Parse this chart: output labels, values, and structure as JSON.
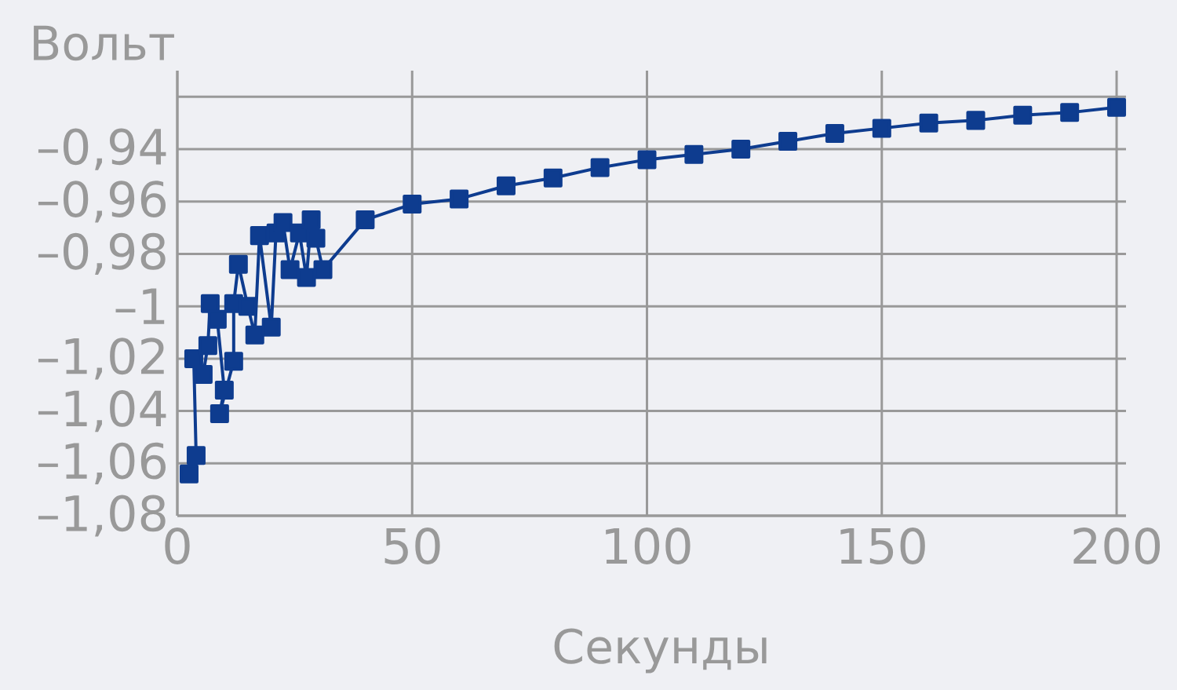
{
  "chart_data": {
    "type": "line",
    "xlabel": "Секунды",
    "ylabel": "Вольт",
    "x": [
      2.5,
      4,
      3.5,
      5.5,
      6.5,
      7,
      8.5,
      10,
      9,
      12,
      12,
      13,
      15,
      16.5,
      17.5,
      20,
      21,
      22.5,
      24,
      26,
      27.5,
      28.5,
      29.5,
      31,
      40,
      50,
      60,
      70,
      80,
      90,
      100,
      110,
      120,
      130,
      140,
      150,
      160,
      170,
      180,
      190,
      200
    ],
    "series": [
      {
        "color": "#0e3c8f",
        "values": [
          -1.064,
          -1.057,
          -1.02,
          -1.026,
          -1.015,
          -0.999,
          -1.005,
          -1.032,
          -1.041,
          -1.021,
          -0.999,
          -0.984,
          -1.0,
          -1.011,
          -0.973,
          -1.008,
          -0.972,
          -0.968,
          -0.986,
          -0.972,
          -0.989,
          -0.967,
          -0.974,
          -0.986,
          -0.967,
          -0.961,
          -0.959,
          -0.954,
          -0.951,
          -0.947,
          -0.944,
          -0.942,
          -0.94,
          -0.937,
          -0.934,
          -0.932,
          -0.93,
          -0.929,
          -0.927,
          -0.926,
          -0.924
        ]
      }
    ],
    "xlim": [
      0,
      202
    ],
    "ylim": [
      -1.08,
      -0.91
    ],
    "xticks": [
      0,
      50,
      100,
      150,
      200
    ],
    "yticks": [
      {
        "value": -1.08,
        "label": "–1,08"
      },
      {
        "value": -1.06,
        "label": "–1,06"
      },
      {
        "value": -1.04,
        "label": "–1,04"
      },
      {
        "value": -1.02,
        "label": "–1,02"
      },
      {
        "value": -1,
        "label": "–1"
      },
      {
        "value": -0.98,
        "label": "–0,98"
      },
      {
        "value": -0.96,
        "label": "–0,96"
      },
      {
        "value": -0.94,
        "label": "–0,94"
      },
      {
        "value": -0.92,
        "label": null
      }
    ],
    "grid": true,
    "marker": "square",
    "line_style": "solid"
  }
}
